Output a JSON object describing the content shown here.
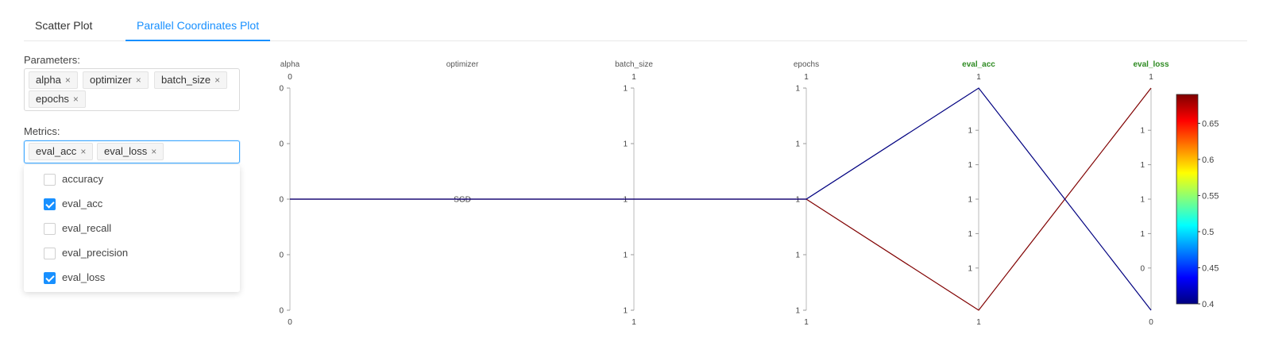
{
  "tabs": [
    {
      "label": "Scatter Plot",
      "active": false
    },
    {
      "label": "Parallel Coordinates Plot",
      "active": true
    }
  ],
  "parameters": {
    "label": "Parameters:",
    "selected": [
      "alpha",
      "optimizer",
      "batch_size",
      "epochs"
    ]
  },
  "metrics": {
    "label": "Metrics:",
    "selected": [
      "eval_acc",
      "eval_loss"
    ],
    "options": [
      {
        "label": "accuracy",
        "checked": false
      },
      {
        "label": "eval_acc",
        "checked": true
      },
      {
        "label": "eval_recall",
        "checked": false
      },
      {
        "label": "eval_precision",
        "checked": false
      },
      {
        "label": "eval_loss",
        "checked": true
      }
    ]
  },
  "colors": {
    "accent": "#1890ff",
    "metric_label": "#2e8b22",
    "axis": "#bbbbbb",
    "line_high": "#8b0000",
    "line_low": "#00008b"
  },
  "chart_data": {
    "type": "parallel_coordinates",
    "axes": [
      {
        "name": "alpha",
        "is_metric": false,
        "top": "0",
        "bottom": "0",
        "ticks": [
          "0",
          "0",
          "0",
          "0",
          "0"
        ]
      },
      {
        "name": "optimizer",
        "is_metric": false,
        "top": "",
        "bottom": "",
        "ticks": [],
        "categories": [
          "SGD"
        ]
      },
      {
        "name": "batch_size",
        "is_metric": false,
        "top": "1",
        "bottom": "1",
        "ticks": [
          "1",
          "1",
          "1",
          "1",
          "1"
        ]
      },
      {
        "name": "epochs",
        "is_metric": false,
        "top": "1",
        "bottom": "1",
        "ticks": [
          "1",
          "1",
          "1",
          "1",
          "1"
        ]
      },
      {
        "name": "eval_acc",
        "is_metric": true,
        "top": "1",
        "bottom": "1",
        "ticks": [
          "1",
          "1",
          "1",
          "1",
          "1"
        ]
      },
      {
        "name": "eval_loss",
        "is_metric": true,
        "top": "1",
        "bottom": "0",
        "ticks": [
          "1",
          "1",
          "1",
          "1",
          "0"
        ]
      }
    ],
    "lines": [
      {
        "color_value": 0.69,
        "values": [
          0.5,
          0.5,
          0.5,
          0.5,
          0.0,
          1.0
        ]
      },
      {
        "color_value": 0.4,
        "values": [
          0.5,
          0.5,
          0.5,
          0.5,
          1.0,
          0.0
        ]
      }
    ],
    "colorbar": {
      "min": 0.4,
      "max": 0.69,
      "ticks": [
        "0.4",
        "0.45",
        "0.5",
        "0.55",
        "0.6",
        "0.65"
      ],
      "tick_values": [
        0.4,
        0.45,
        0.5,
        0.55,
        0.6,
        0.65
      ],
      "colormap": "jet"
    }
  }
}
